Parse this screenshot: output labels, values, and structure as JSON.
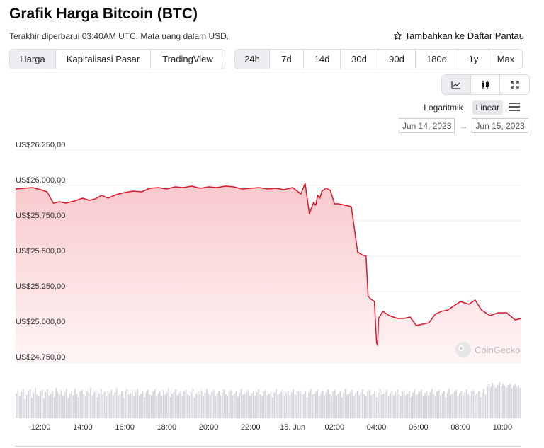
{
  "title": "Grafik Harga Bitcoin (BTC)",
  "subtitle": "Terakhir diperbarui 03:40AM UTC. Mata uang dalam USD.",
  "watchlist_label": "Tambahkan ke Daftar Pantau",
  "views": [
    {
      "label": "Harga",
      "active": true
    },
    {
      "label": "Kapitalisasi Pasar",
      "active": false
    },
    {
      "label": "TradingView",
      "active": false
    }
  ],
  "ranges": [
    {
      "label": "24h",
      "active": true
    },
    {
      "label": "7d",
      "active": false
    },
    {
      "label": "14d",
      "active": false
    },
    {
      "label": "30d",
      "active": false
    },
    {
      "label": "90d",
      "active": false
    },
    {
      "label": "180d",
      "active": false
    },
    {
      "label": "1y",
      "active": false
    },
    {
      "label": "Max",
      "active": false
    }
  ],
  "chart_types": [
    {
      "icon": "line-chart-icon",
      "active": true
    },
    {
      "icon": "candlestick-icon",
      "active": false
    },
    {
      "icon": "fullscreen-icon",
      "active": false
    }
  ],
  "scale": {
    "log_label": "Logaritmik",
    "linear_label": "Linear",
    "active": "Linear"
  },
  "date_from": "Jun 14, 2023",
  "date_to": "Jun 15, 2023",
  "watermark": "CoinGecko",
  "colors": {
    "line": "#e0162b",
    "fill_top": "#f8c9cc",
    "fill_bottom": "#fff5f5",
    "volume": "#d4d6db",
    "grid": "#ececec"
  },
  "chart_data": {
    "type": "area",
    "title": "",
    "xlabel": "",
    "ylabel": "",
    "currency": "USD",
    "ylim": [
      24750,
      26250
    ],
    "y_ticks": [
      {
        "value": 26250,
        "label": "US$26.250,00"
      },
      {
        "value": 26000,
        "label": "US$26.000,00"
      },
      {
        "value": 25750,
        "label": "US$25.750,00"
      },
      {
        "value": 25500,
        "label": "US$25.500,00"
      },
      {
        "value": 25250,
        "label": "US$25.250,00"
      },
      {
        "value": 25000,
        "label": "US$25.000,00"
      },
      {
        "value": 24750,
        "label": "US$24.750,00"
      }
    ],
    "xlim": [
      10.8,
      34.9
    ],
    "x_ticks": [
      {
        "value": 12,
        "label": "12:00"
      },
      {
        "value": 14,
        "label": "14:00"
      },
      {
        "value": 16,
        "label": "16:00"
      },
      {
        "value": 18,
        "label": "18:00"
      },
      {
        "value": 20,
        "label": "20:00"
      },
      {
        "value": 22,
        "label": "22:00"
      },
      {
        "value": 24,
        "label": "15. Jun"
      },
      {
        "value": 26,
        "label": "02:00"
      },
      {
        "value": 28,
        "label": "04:00"
      },
      {
        "value": 30,
        "label": "06:00"
      },
      {
        "value": 32,
        "label": "08:00"
      },
      {
        "value": 34,
        "label": "10:00"
      }
    ],
    "series": [
      {
        "x": [
          10.8,
          11.2,
          11.6,
          12.0,
          12.3,
          12.6,
          12.9,
          13.2,
          13.6,
          14.0,
          14.3,
          14.6,
          14.9,
          15.2,
          15.6,
          16.0,
          16.4,
          16.8,
          17.2,
          17.6,
          18.0,
          18.4,
          18.8,
          19.2,
          19.6,
          20.0,
          20.4,
          20.8,
          21.2,
          21.6,
          22.0,
          22.4,
          22.8,
          23.2,
          23.6,
          24.0,
          24.4,
          24.6,
          24.8,
          25.0,
          25.1,
          25.2,
          25.3,
          25.4,
          25.6,
          25.8,
          26.0,
          26.2,
          26.5,
          26.8,
          27.1,
          27.3,
          27.5,
          27.6,
          27.7,
          27.9,
          28.0,
          28.05,
          28.1,
          28.3,
          28.6,
          29.0,
          29.3,
          29.6,
          29.9,
          30.2,
          30.5,
          30.8,
          31.1,
          31.4,
          31.7,
          32.0,
          32.2,
          32.4,
          32.7,
          33.0,
          33.4,
          33.8,
          34.2,
          34.6,
          34.9
        ],
        "y": [
          25975,
          25980,
          25985,
          25970,
          25955,
          25875,
          25885,
          25875,
          25890,
          25910,
          25895,
          25905,
          25930,
          25910,
          25935,
          25950,
          25960,
          25955,
          25980,
          25985,
          25975,
          25990,
          25985,
          25995,
          25980,
          25990,
          25985,
          25995,
          25990,
          25975,
          25980,
          25985,
          25975,
          25980,
          25970,
          25985,
          25940,
          26015,
          25800,
          25880,
          25860,
          25930,
          25910,
          25960,
          25980,
          25965,
          25870,
          25870,
          25860,
          25850,
          25530,
          25510,
          25500,
          25220,
          25200,
          25180,
          24890,
          24870,
          25060,
          25110,
          25080,
          25060,
          25060,
          25070,
          25010,
          25020,
          25030,
          25090,
          25110,
          25120,
          25150,
          25180,
          25170,
          25160,
          25190,
          25120,
          25080,
          25100,
          25100,
          25050,
          25060
        ]
      }
    ],
    "volume": [
      62,
      70,
      55,
      66,
      74,
      48,
      58,
      69,
      72,
      51,
      63,
      77,
      60,
      54,
      68,
      71,
      49,
      65,
      73,
      57,
      61,
      67,
      52,
      75,
      64,
      59,
      70,
      56,
      66,
      72,
      50,
      62,
      69,
      58,
      74,
      61,
      53,
      67,
      71,
      60,
      55,
      68,
      63,
      76,
      57,
      65,
      70,
      52,
      61,
      73,
      59,
      66,
      54,
      69,
      62,
      71,
      58,
      64,
      75,
      56,
      60,
      68,
      51,
      67,
      72,
      59,
      63,
      70,
      55,
      66,
      74,
      57,
      61,
      69,
      52,
      65,
      71,
      60,
      58,
      67,
      73,
      54,
      62,
      68,
      56,
      70,
      59,
      64,
      75,
      53,
      61,
      66,
      72,
      58,
      63,
      69,
      55,
      67,
      71,
      60,
      57,
      65,
      74,
      52,
      62,
      68,
      59,
      70,
      56,
      64,
      73,
      61,
      58,
      66,
      71,
      54,
      63,
      69,
      57,
      65,
      72,
      60,
      55,
      67,
      70,
      58,
      62,
      68,
      53,
      64,
      74,
      59,
      61,
      66,
      71,
      56,
      63,
      69,
      57,
      65,
      72,
      60,
      54,
      67,
      70,
      58,
      62,
      68,
      52,
      64,
      73,
      59,
      61,
      66,
      71,
      55,
      63,
      69,
      57,
      65,
      72,
      60,
      56,
      67,
      70,
      58,
      62,
      68,
      53,
      64,
      74,
      59,
      61,
      66,
      71,
      55,
      63,
      69,
      57,
      65,
      72,
      60,
      54,
      67,
      70,
      58,
      62,
      68,
      52,
      64,
      73,
      59,
      61,
      66,
      71,
      56,
      63,
      69,
      57,
      65,
      72,
      60,
      55,
      67,
      70,
      58,
      62,
      68,
      53,
      64,
      74,
      59,
      61,
      66,
      71,
      55,
      63,
      69,
      57,
      65,
      72,
      60,
      54,
      67,
      70,
      58,
      62,
      68,
      52,
      64,
      73,
      59,
      61,
      66,
      71,
      56,
      63,
      69,
      57,
      65,
      72,
      60,
      55,
      67,
      70,
      58,
      62,
      68,
      53,
      64,
      74,
      59,
      61,
      66,
      71,
      55,
      63,
      69,
      57,
      65,
      72,
      60,
      54,
      67,
      70,
      58,
      62,
      68,
      52,
      64,
      73,
      59,
      80,
      85,
      78,
      88,
      82,
      76,
      84,
      90,
      79,
      86,
      81,
      77,
      83,
      87,
      75,
      80,
      85,
      78,
      82,
      76
    ],
    "grid": true,
    "legend": "none"
  }
}
